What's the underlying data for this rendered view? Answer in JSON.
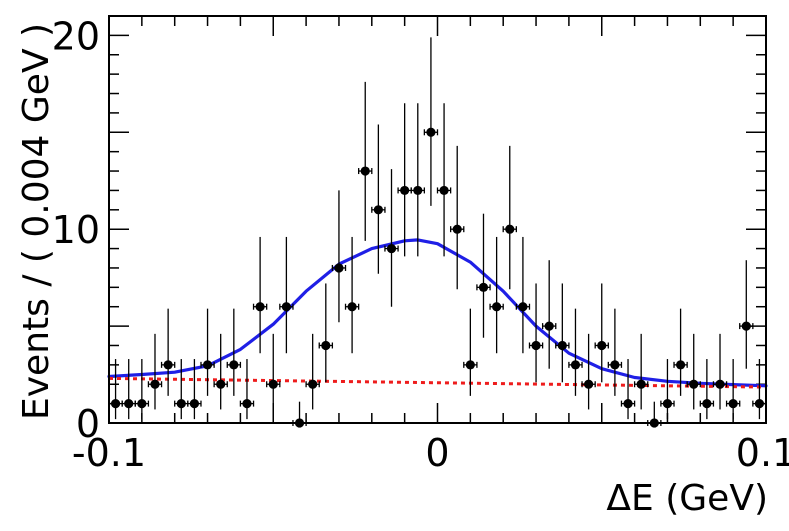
{
  "chart_data": {
    "type": "scatter",
    "title": "",
    "xlabel": "ΔE (GeV)",
    "ylabel": "Events / ( 0.004 GeV )",
    "xlim": [
      -0.1,
      0.1
    ],
    "ylim": [
      0,
      21
    ],
    "x_ticks": [
      {
        "value": -0.1,
        "label": "-0.1"
      },
      {
        "value": 0,
        "label": "0"
      },
      {
        "value": 0.1,
        "label": "0.1"
      }
    ],
    "y_ticks": [
      {
        "value": 0,
        "label": "0"
      },
      {
        "value": 10,
        "label": "10"
      },
      {
        "value": 20,
        "label": "20"
      }
    ],
    "grid": false,
    "legend": "none",
    "x_bin_halfwidth": 0.002,
    "data_points": [
      {
        "x": -0.098,
        "y": 1,
        "lo": 0.8,
        "hi": 2.3
      },
      {
        "x": -0.094,
        "y": 1,
        "lo": 0.8,
        "hi": 2.3
      },
      {
        "x": -0.09,
        "y": 1,
        "lo": 0.8,
        "hi": 2.3
      },
      {
        "x": -0.086,
        "y": 2,
        "lo": 1.3,
        "hi": 2.6
      },
      {
        "x": -0.082,
        "y": 3,
        "lo": 1.6,
        "hi": 2.9
      },
      {
        "x": -0.078,
        "y": 1,
        "lo": 0.8,
        "hi": 2.3
      },
      {
        "x": -0.074,
        "y": 1,
        "lo": 0.8,
        "hi": 2.3
      },
      {
        "x": -0.07,
        "y": 3,
        "lo": 1.6,
        "hi": 2.9
      },
      {
        "x": -0.066,
        "y": 2,
        "lo": 1.3,
        "hi": 2.6
      },
      {
        "x": -0.062,
        "y": 3,
        "lo": 1.6,
        "hi": 2.9
      },
      {
        "x": -0.058,
        "y": 1,
        "lo": 0.8,
        "hi": 2.3
      },
      {
        "x": -0.054,
        "y": 6,
        "lo": 2.4,
        "hi": 3.6
      },
      {
        "x": -0.05,
        "y": 2,
        "lo": 1.3,
        "hi": 2.6
      },
      {
        "x": -0.046,
        "y": 6,
        "lo": 2.4,
        "hi": 3.6
      },
      {
        "x": -0.042,
        "y": 0,
        "lo": 0,
        "hi": 1.1
      },
      {
        "x": -0.038,
        "y": 2,
        "lo": 1.3,
        "hi": 2.6
      },
      {
        "x": -0.034,
        "y": 4,
        "lo": 1.9,
        "hi": 3.2
      },
      {
        "x": -0.03,
        "y": 8,
        "lo": 2.8,
        "hi": 4.0
      },
      {
        "x": -0.026,
        "y": 6,
        "lo": 2.4,
        "hi": 3.6
      },
      {
        "x": -0.022,
        "y": 13,
        "lo": 3.6,
        "hi": 4.6
      },
      {
        "x": -0.018,
        "y": 11,
        "lo": 3.3,
        "hi": 4.4
      },
      {
        "x": -0.014,
        "y": 9,
        "lo": 3.0,
        "hi": 4.1
      },
      {
        "x": -0.01,
        "y": 12,
        "lo": 3.4,
        "hi": 4.5
      },
      {
        "x": -0.006,
        "y": 12,
        "lo": 3.4,
        "hi": 4.5
      },
      {
        "x": -0.002,
        "y": 15,
        "lo": 3.8,
        "hi": 4.9
      },
      {
        "x": 0.002,
        "y": 12,
        "lo": 3.4,
        "hi": 4.5
      },
      {
        "x": 0.006,
        "y": 10,
        "lo": 3.1,
        "hi": 4.3
      },
      {
        "x": 0.01,
        "y": 3,
        "lo": 1.6,
        "hi": 2.9
      },
      {
        "x": 0.014,
        "y": 7,
        "lo": 2.6,
        "hi": 3.8
      },
      {
        "x": 0.018,
        "y": 6,
        "lo": 2.4,
        "hi": 3.6
      },
      {
        "x": 0.022,
        "y": 10,
        "lo": 3.1,
        "hi": 4.3
      },
      {
        "x": 0.026,
        "y": 6,
        "lo": 2.4,
        "hi": 3.6
      },
      {
        "x": 0.03,
        "y": 4,
        "lo": 1.9,
        "hi": 3.2
      },
      {
        "x": 0.034,
        "y": 5,
        "lo": 2.2,
        "hi": 3.4
      },
      {
        "x": 0.038,
        "y": 4,
        "lo": 1.9,
        "hi": 3.2
      },
      {
        "x": 0.042,
        "y": 3,
        "lo": 1.6,
        "hi": 2.9
      },
      {
        "x": 0.046,
        "y": 2,
        "lo": 1.3,
        "hi": 2.6
      },
      {
        "x": 0.05,
        "y": 4,
        "lo": 1.9,
        "hi": 3.2
      },
      {
        "x": 0.054,
        "y": 3,
        "lo": 1.6,
        "hi": 2.9
      },
      {
        "x": 0.058,
        "y": 1,
        "lo": 0.8,
        "hi": 2.3
      },
      {
        "x": 0.062,
        "y": 2,
        "lo": 1.3,
        "hi": 2.6
      },
      {
        "x": 0.066,
        "y": 0,
        "lo": 0,
        "hi": 1.1
      },
      {
        "x": 0.07,
        "y": 1,
        "lo": 0.8,
        "hi": 2.3
      },
      {
        "x": 0.074,
        "y": 3,
        "lo": 1.6,
        "hi": 2.9
      },
      {
        "x": 0.078,
        "y": 2,
        "lo": 1.3,
        "hi": 2.6
      },
      {
        "x": 0.082,
        "y": 1,
        "lo": 0.8,
        "hi": 2.3
      },
      {
        "x": 0.086,
        "y": 2,
        "lo": 1.3,
        "hi": 2.6
      },
      {
        "x": 0.09,
        "y": 1,
        "lo": 0.8,
        "hi": 2.3
      },
      {
        "x": 0.094,
        "y": 5,
        "lo": 2.2,
        "hi": 3.4
      },
      {
        "x": 0.098,
        "y": 1,
        "lo": 0.8,
        "hi": 2.3
      }
    ],
    "fit_curves": [
      {
        "style": "solid",
        "color": "#1f1fe6",
        "points": [
          [
            -0.1,
            2.4
          ],
          [
            -0.09,
            2.5
          ],
          [
            -0.08,
            2.62
          ],
          [
            -0.07,
            2.95
          ],
          [
            -0.06,
            3.8
          ],
          [
            -0.05,
            5.1
          ],
          [
            -0.04,
            6.8
          ],
          [
            -0.03,
            8.2
          ],
          [
            -0.02,
            9.0
          ],
          [
            -0.01,
            9.4
          ],
          [
            -0.006,
            9.45
          ],
          [
            0.0,
            9.25
          ],
          [
            0.01,
            8.3
          ],
          [
            0.02,
            6.8
          ],
          [
            0.03,
            5.0
          ],
          [
            0.04,
            3.6
          ],
          [
            0.05,
            2.8
          ],
          [
            0.06,
            2.35
          ],
          [
            0.07,
            2.15
          ],
          [
            0.08,
            2.05
          ],
          [
            0.09,
            1.98
          ],
          [
            0.1,
            1.92
          ]
        ]
      },
      {
        "style": "dashed",
        "color": "#ee1c1c",
        "points": [
          [
            -0.1,
            2.3
          ],
          [
            0.1,
            1.85
          ]
        ]
      }
    ],
    "colors": {
      "data": "#000000",
      "signal_plus_background": "#1f1fe6",
      "background": "#ee1c1c",
      "frame": "#000000"
    }
  }
}
